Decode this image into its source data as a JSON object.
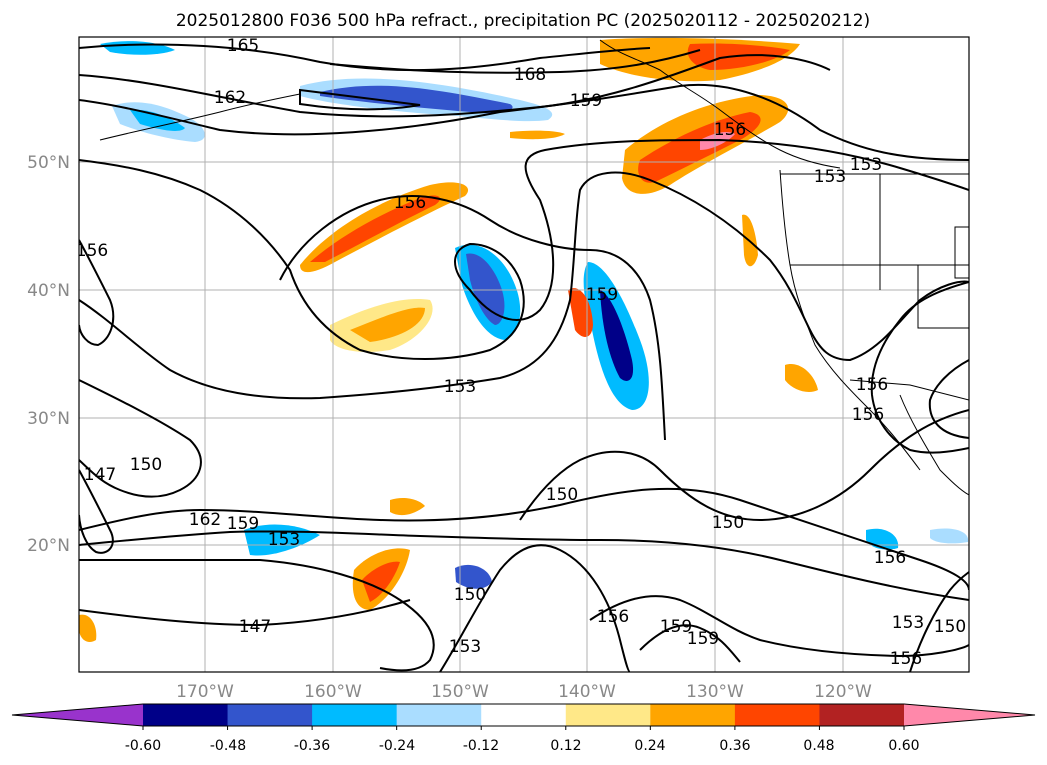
{
  "title": "2025012800 F036 500 hPa refract., precipitation PC (2025020112 - 2025020212)",
  "map": {
    "lat_labels": [
      "50°N",
      "40°N",
      "30°N",
      "20°N"
    ],
    "lon_labels": [
      "170°W",
      "160°W",
      "150°W",
      "140°W",
      "130°W",
      "120°W"
    ],
    "gridline_color": "#b0b0b0",
    "contour_color": "#000000"
  },
  "contour_labels": [
    "165",
    "168",
    "162",
    "159",
    "156",
    "156",
    "156",
    "153",
    "153",
    "159",
    "153",
    "156",
    "147",
    "150",
    "162",
    "159",
    "153",
    "150",
    "150",
    "150",
    "147",
    "153",
    "156",
    "159",
    "159",
    "153",
    "150",
    "156",
    "156",
    "156"
  ],
  "colorbar": {
    "colors": [
      "#9933cc",
      "#000088",
      "#3355cc",
      "#00bbff",
      "#aaddff",
      "#ffffff",
      "#ffe888",
      "#ffa500",
      "#ff4500",
      "#b22222",
      "#ff88aa"
    ],
    "tick_labels": [
      "-0.60",
      "-0.48",
      "-0.36",
      "-0.24",
      "-0.12",
      "0.12",
      "0.24",
      "0.36",
      "0.48",
      "0.60"
    ]
  }
}
